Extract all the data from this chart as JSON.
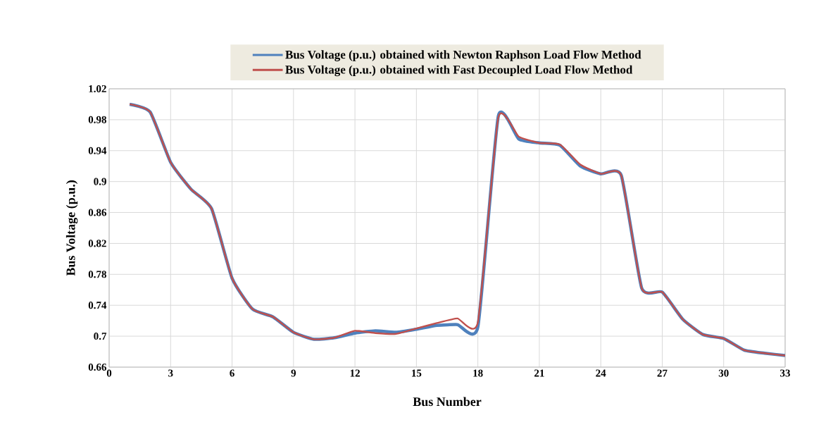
{
  "chart_data": {
    "type": "line",
    "xlabel": "Bus Number",
    "ylabel": "Bus Voltage (p.u.)",
    "x": [
      1,
      2,
      3,
      4,
      5,
      6,
      7,
      8,
      9,
      10,
      11,
      12,
      13,
      14,
      15,
      16,
      17,
      18,
      19,
      20,
      21,
      22,
      23,
      24,
      25,
      26,
      27,
      28,
      29,
      30,
      31,
      32,
      33
    ],
    "series": [
      {
        "name": "Bus Voltage (p.u.) obtained with Newton Raphson Load Flow  Method",
        "color": "#4f81bd",
        "values": [
          1.0,
          0.99,
          0.925,
          0.89,
          0.865,
          0.775,
          0.735,
          0.725,
          0.705,
          0.696,
          0.698,
          0.704,
          0.707,
          0.705,
          0.709,
          0.714,
          0.715,
          0.712,
          0.985,
          0.955,
          0.95,
          0.947,
          0.92,
          0.91,
          0.908,
          0.762,
          0.757,
          0.722,
          0.702,
          0.697,
          0.682,
          0.678,
          0.675
        ]
      },
      {
        "name": "Bus Voltage (p.u.) obtained with Fast Decoupled Load Flow  Method",
        "color": "#c0504d",
        "values": [
          1.0,
          0.99,
          0.925,
          0.89,
          0.865,
          0.775,
          0.735,
          0.725,
          0.705,
          0.696,
          0.698,
          0.707,
          0.704,
          0.703,
          0.71,
          0.717,
          0.723,
          0.718,
          0.983,
          0.958,
          0.95,
          0.948,
          0.922,
          0.91,
          0.908,
          0.762,
          0.757,
          0.722,
          0.702,
          0.697,
          0.682,
          0.678,
          0.675
        ]
      }
    ],
    "xlim": [
      0,
      33
    ],
    "xticks": [
      0,
      3,
      6,
      9,
      12,
      15,
      18,
      21,
      24,
      27,
      30,
      33
    ],
    "ylim": [
      0.66,
      1.02
    ],
    "yticks": [
      0.66,
      0.7,
      0.74,
      0.78,
      0.82,
      0.86,
      0.9,
      0.94,
      0.98,
      1.02
    ],
    "grid": true,
    "legend": "top",
    "marker": "none",
    "line_style": "solid"
  }
}
